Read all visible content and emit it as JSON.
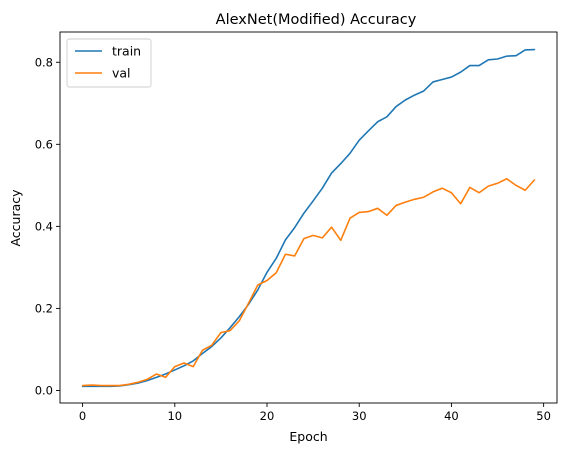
{
  "chart_data": {
    "type": "line",
    "title": "AlexNet(Modified) Accuracy",
    "xlabel": "Epoch",
    "ylabel": "Accuracy",
    "xlim": [
      -2.45,
      51.45
    ],
    "ylim": [
      -0.0306,
      0.8738
    ],
    "xticks": [
      0,
      10,
      20,
      30,
      40,
      50
    ],
    "yticks": [
      0.0,
      0.2,
      0.4,
      0.6,
      0.8
    ],
    "xtick_labels": [
      "0",
      "10",
      "20",
      "30",
      "40",
      "50"
    ],
    "ytick_labels": [
      "0.0",
      "0.2",
      "0.4",
      "0.6",
      "0.8"
    ],
    "grid": false,
    "legend_position": "top-left",
    "x": [
      0,
      1,
      2,
      3,
      4,
      5,
      6,
      7,
      8,
      9,
      10,
      11,
      12,
      13,
      14,
      15,
      16,
      17,
      18,
      19,
      20,
      21,
      22,
      23,
      24,
      25,
      26,
      27,
      28,
      29,
      30,
      31,
      32,
      33,
      34,
      35,
      36,
      37,
      38,
      39,
      40,
      41,
      42,
      43,
      44,
      45,
      46,
      47,
      48,
      49
    ],
    "series": [
      {
        "name": "train",
        "color": "#1f77b4",
        "values": [
          0.01,
          0.01,
          0.01,
          0.01,
          0.011,
          0.014,
          0.018,
          0.024,
          0.032,
          0.04,
          0.05,
          0.06,
          0.072,
          0.09,
          0.107,
          0.128,
          0.153,
          0.18,
          0.21,
          0.245,
          0.288,
          0.322,
          0.367,
          0.397,
          0.432,
          0.462,
          0.493,
          0.53,
          0.553,
          0.578,
          0.61,
          0.633,
          0.655,
          0.667,
          0.692,
          0.708,
          0.72,
          0.73,
          0.752,
          0.758,
          0.764,
          0.776,
          0.792,
          0.792,
          0.806,
          0.808,
          0.815,
          0.816,
          0.83,
          0.831
        ]
      },
      {
        "name": "val",
        "color": "#ff7f0e",
        "values": [
          0.012,
          0.013,
          0.012,
          0.012,
          0.012,
          0.015,
          0.02,
          0.027,
          0.04,
          0.032,
          0.058,
          0.067,
          0.058,
          0.098,
          0.11,
          0.141,
          0.146,
          0.17,
          0.213,
          0.257,
          0.268,
          0.287,
          0.332,
          0.328,
          0.37,
          0.378,
          0.372,
          0.398,
          0.366,
          0.42,
          0.434,
          0.436,
          0.444,
          0.427,
          0.451,
          0.459,
          0.466,
          0.471,
          0.484,
          0.493,
          0.482,
          0.455,
          0.495,
          0.482,
          0.498,
          0.505,
          0.516,
          0.5,
          0.488,
          0.513
        ]
      }
    ]
  }
}
